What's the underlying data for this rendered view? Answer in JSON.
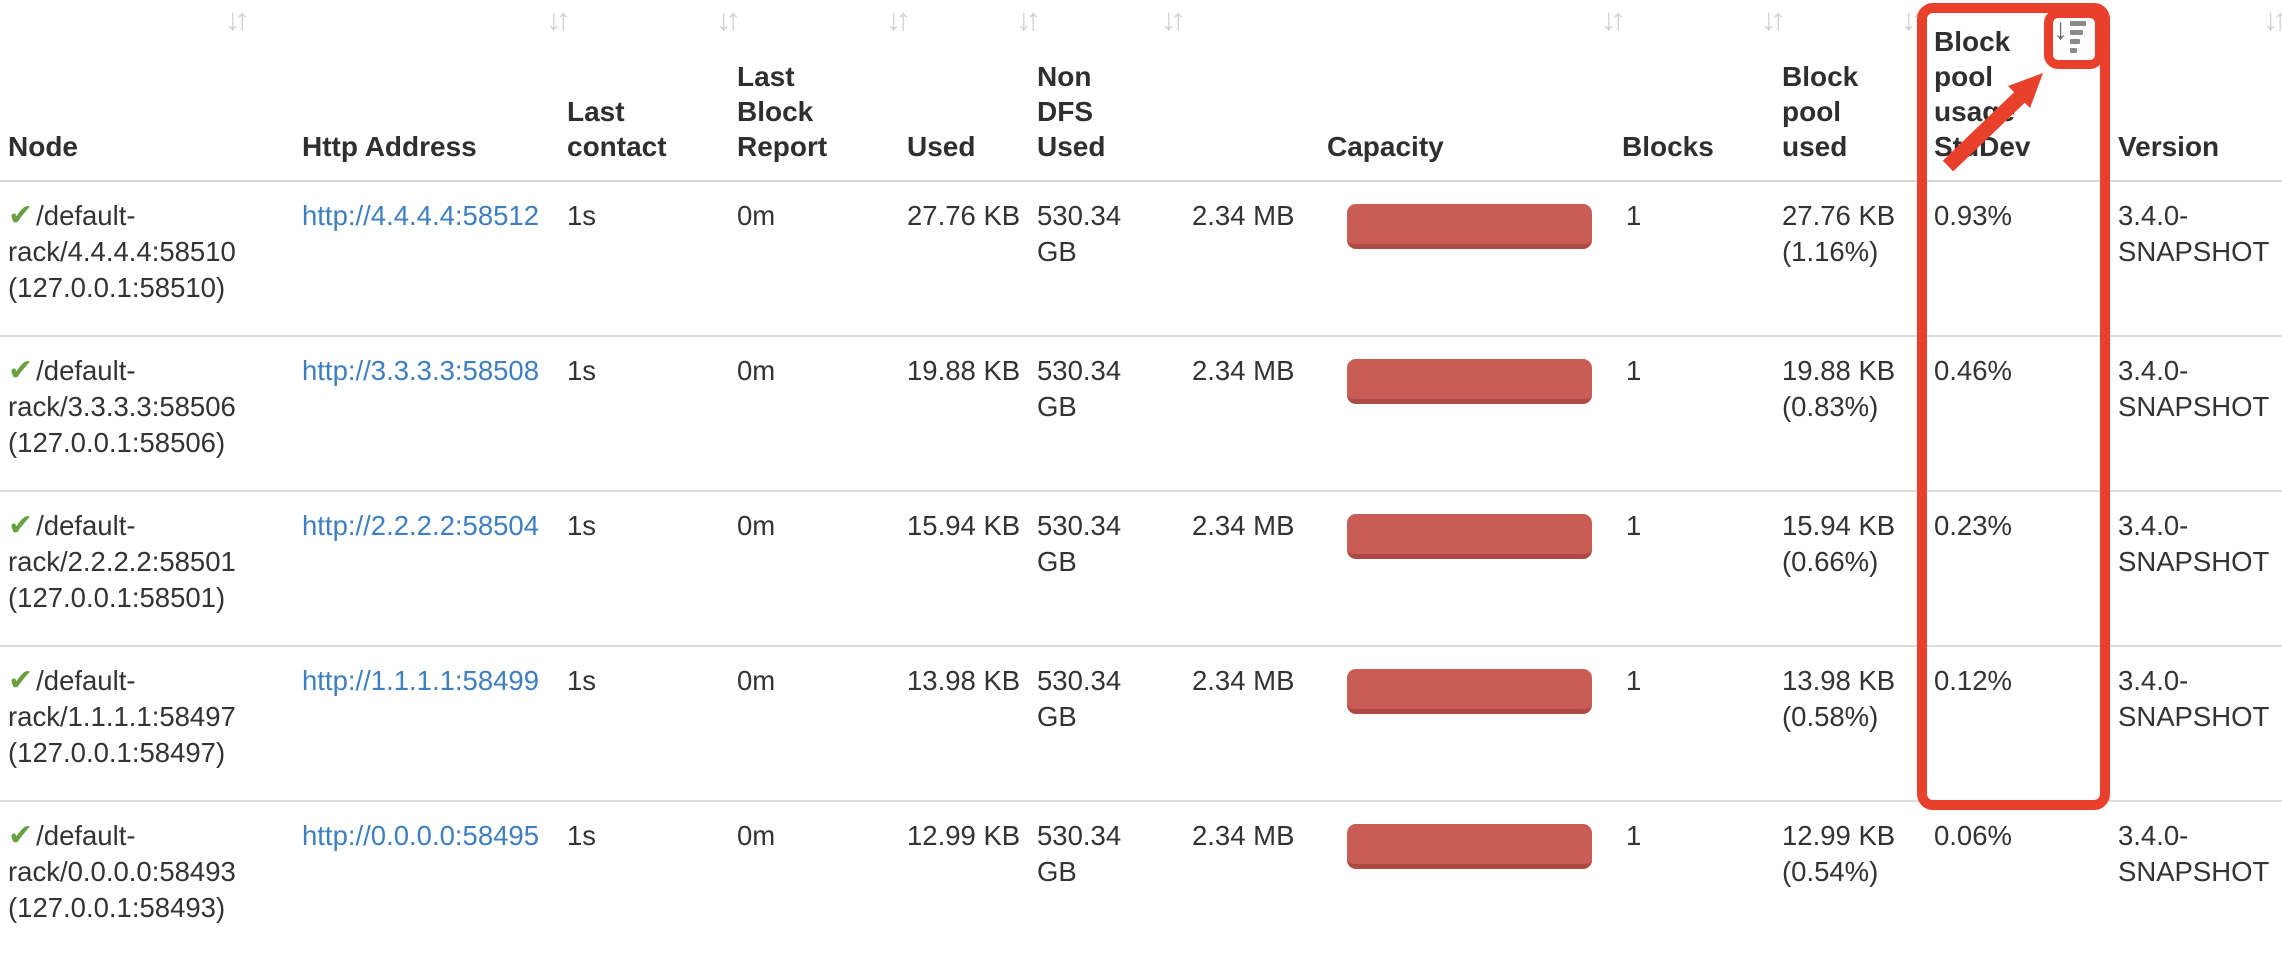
{
  "colors": {
    "annotation_red": "#e8402b",
    "capacity_bar_fill": "#c95d55",
    "capacity_bar_edge": "#ae4a44",
    "link_blue": "#3e7fc1",
    "check_green": "#68a042",
    "sort_idle_gray": "#d2d2d2",
    "sort_active_gray": "#6a6a6a",
    "header_text": "#2f2f2f",
    "body_text": "#333333",
    "row_border": "#dcdcdc"
  },
  "icons": {
    "check": "✔",
    "sort_idle": "↓↑",
    "sort_active_arrow": "↓"
  },
  "table": {
    "columns": [
      {
        "id": "node",
        "label": "Node",
        "sort": "idle"
      },
      {
        "id": "http_address",
        "label": "Http Address",
        "sort": "idle"
      },
      {
        "id": "last_contact",
        "label": "Last contact",
        "sort": "idle"
      },
      {
        "id": "last_block_report",
        "label": "Last Block Report",
        "sort": "idle"
      },
      {
        "id": "used",
        "label": "Used",
        "sort": "idle"
      },
      {
        "id": "non_dfs_used",
        "label": "Non DFS Used",
        "sort": "idle"
      },
      {
        "id": "unlabeled",
        "label": "",
        "sort": "none"
      },
      {
        "id": "capacity",
        "label": "Capacity",
        "sort": "idle"
      },
      {
        "id": "blocks",
        "label": "Blocks",
        "sort": "idle"
      },
      {
        "id": "block_pool_used",
        "label": "Block pool used",
        "sort": "idle"
      },
      {
        "id": "block_pool_usage_stddev",
        "label": "Block pool usage StdDev",
        "sort": "active-desc"
      },
      {
        "id": "version",
        "label": "Version",
        "sort": "idle"
      }
    ],
    "rows": [
      {
        "node": "/default-rack/4.4.4.4:58510 (127.0.0.1:58510)",
        "http_address": "http://4.4.4.4:58512",
        "last_contact": "1s",
        "last_block_report": "0m",
        "used": "27.76 KB",
        "non_dfs_used": "530.34 GB",
        "unlabeled_value": "2.34 MB",
        "blocks": "1",
        "block_pool_used": "27.76 KB (1.16%)",
        "block_pool_usage_stddev": "0.93%",
        "version": "3.4.0-SNAPSHOT"
      },
      {
        "node": "/default-rack/3.3.3.3:58506 (127.0.0.1:58506)",
        "http_address": "http://3.3.3.3:58508",
        "last_contact": "1s",
        "last_block_report": "0m",
        "used": "19.88 KB",
        "non_dfs_used": "530.34 GB",
        "unlabeled_value": "2.34 MB",
        "blocks": "1",
        "block_pool_used": "19.88 KB (0.83%)",
        "block_pool_usage_stddev": "0.46%",
        "version": "3.4.0-SNAPSHOT"
      },
      {
        "node": "/default-rack/2.2.2.2:58501 (127.0.0.1:58501)",
        "http_address": "http://2.2.2.2:58504",
        "last_contact": "1s",
        "last_block_report": "0m",
        "used": "15.94 KB",
        "non_dfs_used": "530.34 GB",
        "unlabeled_value": "2.34 MB",
        "blocks": "1",
        "block_pool_used": "15.94 KB (0.66%)",
        "block_pool_usage_stddev": "0.23%",
        "version": "3.4.0-SNAPSHOT"
      },
      {
        "node": "/default-rack/1.1.1.1:58497 (127.0.0.1:58497)",
        "http_address": "http://1.1.1.1:58499",
        "last_contact": "1s",
        "last_block_report": "0m",
        "used": "13.98 KB",
        "non_dfs_used": "530.34 GB",
        "unlabeled_value": "2.34 MB",
        "blocks": "1",
        "block_pool_used": "13.98 KB (0.58%)",
        "block_pool_usage_stddev": "0.12%",
        "version": "3.4.0-SNAPSHOT"
      },
      {
        "node": "/default-rack/0.0.0.0:58493 (127.0.0.1:58493)",
        "http_address": "http://0.0.0.0:58495",
        "last_contact": "1s",
        "last_block_report": "0m",
        "used": "12.99 KB",
        "non_dfs_used": "530.34 GB",
        "unlabeled_value": "2.34 MB",
        "blocks": "1",
        "block_pool_used": "12.99 KB (0.54%)",
        "block_pool_usage_stddev": "0.06%",
        "version": "3.4.0-SNAPSHOT"
      }
    ]
  }
}
